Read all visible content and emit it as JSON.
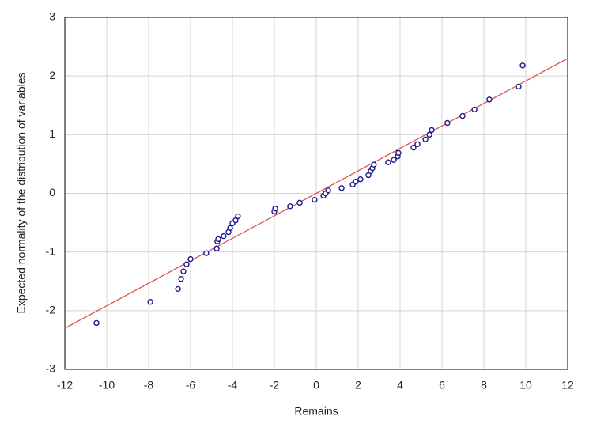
{
  "chart_data": {
    "type": "scatter",
    "xlabel": "Remains",
    "ylabel": "Expected normality of the distribution of variables",
    "x": [
      -10.49,
      -7.92,
      -6.6,
      -6.45,
      -6.34,
      -6.19,
      -6.0,
      -5.25,
      -4.75,
      -4.72,
      -4.68,
      -4.42,
      -4.19,
      -4.11,
      -4.0,
      -3.85,
      -3.74,
      -2.0,
      -1.96,
      -1.25,
      -0.79,
      -0.08,
      0.34,
      0.45,
      0.57,
      1.21,
      1.74,
      1.89,
      2.11,
      2.49,
      2.6,
      2.68,
      2.75,
      3.43,
      3.7,
      3.89,
      3.92,
      4.64,
      4.83,
      5.21,
      5.4,
      5.51,
      6.26,
      6.98,
      7.55,
      8.26,
      9.66,
      9.85
    ],
    "y": [
      -2.21,
      -1.85,
      -1.63,
      -1.46,
      -1.33,
      -1.21,
      -1.12,
      -1.02,
      -0.94,
      -0.82,
      -0.78,
      -0.73,
      -0.66,
      -0.59,
      -0.51,
      -0.46,
      -0.39,
      -0.31,
      -0.26,
      -0.22,
      -0.16,
      -0.11,
      -0.04,
      0,
      0.05,
      0.09,
      0.15,
      0.2,
      0.24,
      0.31,
      0.38,
      0.43,
      0.49,
      0.53,
      0.57,
      0.63,
      0.69,
      0.78,
      0.84,
      0.92,
      1.0,
      1.08,
      1.2,
      1.32,
      1.43,
      1.6,
      1.82,
      2.18
    ],
    "color": "#1a1a8c",
    "line": {
      "x": [
        -12,
        12
      ],
      "y": [
        -2.3,
        2.3
      ],
      "color": "#e05050"
    },
    "xlim": [
      -12,
      12
    ],
    "ylim": [
      -3,
      3
    ],
    "xticks": [
      -12,
      -10,
      -8,
      -6,
      -4,
      -2,
      0,
      2,
      4,
      6,
      8,
      10,
      12
    ],
    "yticks": [
      -3,
      -2,
      -1,
      0,
      1,
      2,
      3
    ],
    "grid": true
  }
}
